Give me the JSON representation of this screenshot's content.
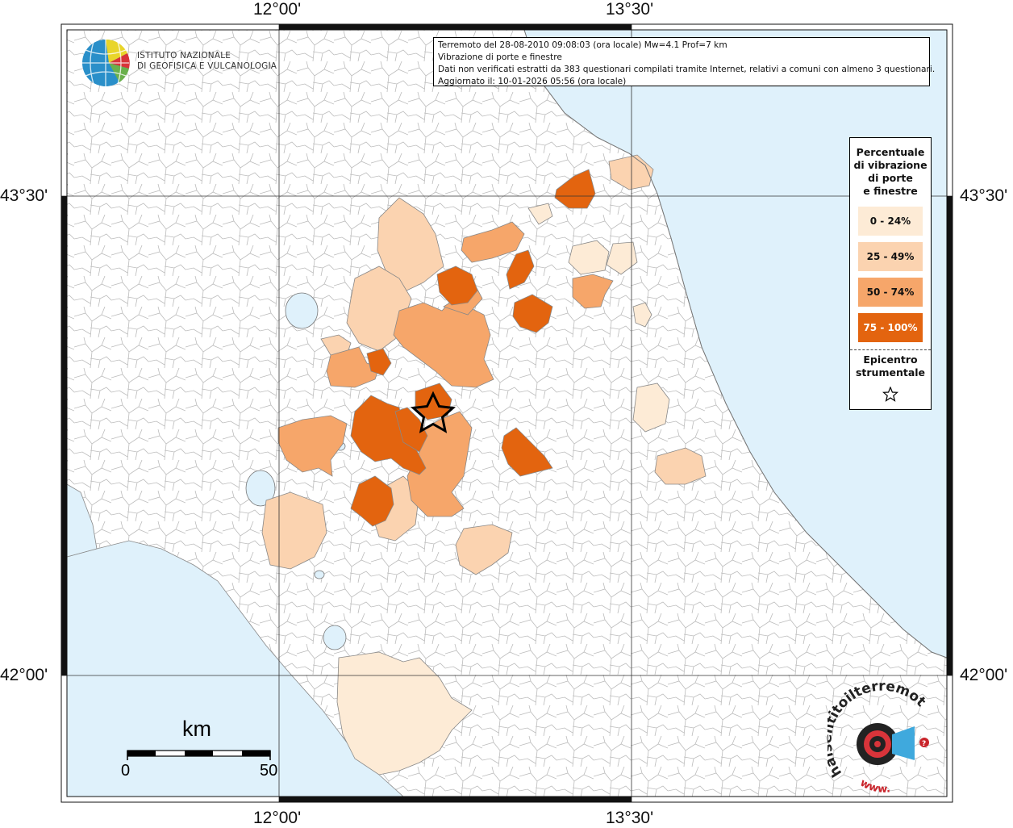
{
  "info": {
    "line1": "Terremoto del 28-08-2010 09:08:03 (ora locale) Mw=4.1 Prof=7 km",
    "line2": "Vibrazione di porte e finestre",
    "line3": "Dati non verificati estratti da 383 questionari compilati tramite Internet, relativi a comuni con almeno 3 questionari.",
    "line4": "Aggiornato il: 10-01-2026 05:56 (ora locale)"
  },
  "institute": {
    "line1": "ISTITUTO NAZIONALE",
    "line2": "DI GEOFISICA E VULCANOLOGIA"
  },
  "coords": {
    "lon_left": "12°00'",
    "lon_right": "13°30'",
    "lat_top": "43°30'",
    "lat_bottom": "42°00'"
  },
  "legend": {
    "title": [
      "Percentuale",
      "di vibrazione",
      "di porte",
      "e finestre"
    ],
    "classes": [
      {
        "label": "0 - 24%",
        "color": "#fdebd6"
      },
      {
        "label": "25 - 49%",
        "color": "#fbd3b0"
      },
      {
        "label": "50 - 74%",
        "color": "#f6a66a"
      },
      {
        "label": "75 - 100%",
        "color": "#e3640f"
      }
    ],
    "epicenter": [
      "Epicentro",
      "strumentale"
    ]
  },
  "scale": {
    "unit": "km",
    "start": "0",
    "end": "50"
  },
  "colors": {
    "sea": "#dff1fb",
    "land": "#ffffff",
    "boundary": "#b4b4b4"
  },
  "logo": {
    "text": "haisentitoilterremoto.it",
    "www": "www.",
    "icon": "hai-sentito-logo"
  }
}
